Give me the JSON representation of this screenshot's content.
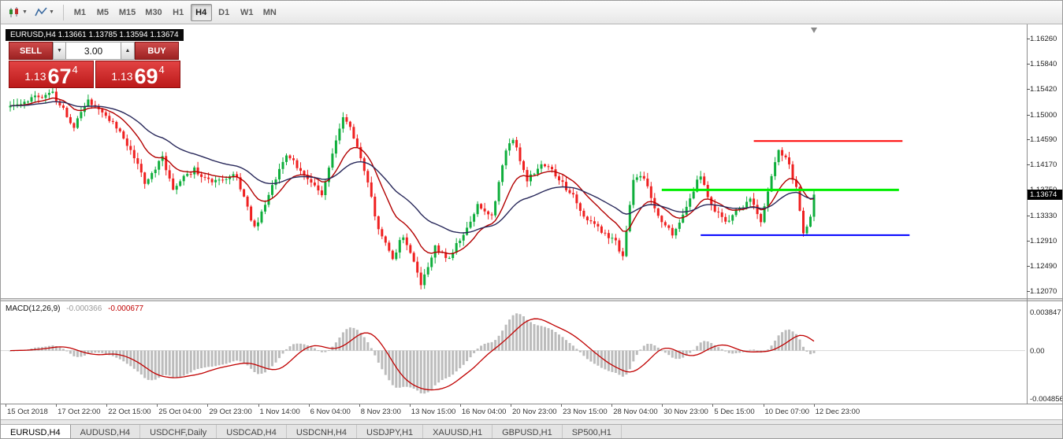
{
  "toolbar": {
    "timeframes": [
      "M1",
      "M5",
      "M15",
      "M30",
      "H1",
      "H4",
      "D1",
      "W1",
      "MN"
    ],
    "active_timeframe": "H4",
    "icons": [
      "chart-type-icon",
      "indicators-icon"
    ]
  },
  "symbol_header": {
    "symbol": "EURUSD,H4",
    "ohlc_text": "1.13661 1.13785 1.13594 1.13674"
  },
  "trade_panel": {
    "sell_label": "SELL",
    "buy_label": "BUY",
    "volume": "3.00",
    "sell_price": {
      "figure": "1.13",
      "pips": "67",
      "point": "4"
    },
    "buy_price": {
      "figure": "1.13",
      "pips": "69",
      "point": "4"
    }
  },
  "price_axis": {
    "current": "1.13674"
  },
  "macd_panel": {
    "label": "MACD(12,26,9)",
    "value_main": "-0.000366",
    "value_signal": "-0.000677"
  },
  "bottom_tabs": {
    "active": "EURUSD,H4",
    "items": [
      "EURUSD,H4",
      "AUDUSD,H4",
      "USDCHF,Daily",
      "USDCAD,H4",
      "USDCNH,H4",
      "USDJPY,H1",
      "XAUUSD,H1",
      "GBPUSD,H1",
      "SP500,H1"
    ]
  },
  "chart_data": {
    "type": "candlestick",
    "symbol": "EURUSD",
    "timeframe": "H4",
    "ohlc": {
      "open": 1.13661,
      "high": 1.13785,
      "low": 1.13594,
      "close": 1.13674
    },
    "current_price": 1.13674,
    "price_axis_ticks": [
      1.1626,
      1.1584,
      1.1542,
      1.15,
      1.1459,
      1.1417,
      1.1375,
      1.1333,
      1.1291,
      1.1249,
      1.1207
    ],
    "time_axis": [
      "15 Oct 2018",
      "17 Oct 22:00",
      "22 Oct 15:00",
      "25 Oct 04:00",
      "29 Oct 23:00",
      "1 Nov 14:00",
      "6 Nov 04:00",
      "8 Nov 23:00",
      "13 Nov 15:00",
      "16 Nov 04:00",
      "20 Nov 23:00",
      "23 Nov 15:00",
      "28 Nov 04:00",
      "30 Nov 23:00",
      "5 Dec 15:00",
      "10 Dec 07:00",
      "12 Dec 23:00"
    ],
    "candle_count": 228,
    "price_path": [
      [
        0,
        1.1512
      ],
      [
        6,
        1.1528
      ],
      [
        12,
        1.1537
      ],
      [
        18,
        1.1478
      ],
      [
        22,
        1.1526
      ],
      [
        28,
        1.1494
      ],
      [
        33,
        1.145
      ],
      [
        38,
        1.139
      ],
      [
        43,
        1.1428
      ],
      [
        46,
        1.138
      ],
      [
        52,
        1.1408
      ],
      [
        57,
        1.1385
      ],
      [
        64,
        1.1398
      ],
      [
        69,
        1.1312
      ],
      [
        73,
        1.1368
      ],
      [
        78,
        1.1432
      ],
      [
        84,
        1.1395
      ],
      [
        88,
        1.1368
      ],
      [
        94,
        1.1498
      ],
      [
        97,
        1.1465
      ],
      [
        100,
        1.1408
      ],
      [
        104,
        1.131
      ],
      [
        108,
        1.1262
      ],
      [
        111,
        1.13
      ],
      [
        116,
        1.1222
      ],
      [
        120,
        1.128
      ],
      [
        124,
        1.1262
      ],
      [
        129,
        1.1315
      ],
      [
        132,
        1.135
      ],
      [
        136,
        1.133
      ],
      [
        140,
        1.1445
      ],
      [
        142,
        1.1462
      ],
      [
        146,
        1.1392
      ],
      [
        150,
        1.142
      ],
      [
        154,
        1.1402
      ],
      [
        158,
        1.1372
      ],
      [
        162,
        1.1335
      ],
      [
        166,
        1.1312
      ],
      [
        170,
        1.1296
      ],
      [
        173,
        1.1268
      ],
      [
        176,
        1.139
      ],
      [
        179,
        1.1398
      ],
      [
        183,
        1.133
      ],
      [
        187,
        1.1302
      ],
      [
        191,
        1.1345
      ],
      [
        195,
        1.1402
      ],
      [
        198,
        1.135
      ],
      [
        202,
        1.1322
      ],
      [
        206,
        1.1345
      ],
      [
        209,
        1.1358
      ],
      [
        212,
        1.1322
      ],
      [
        215,
        1.14
      ],
      [
        217,
        1.1443
      ],
      [
        220,
        1.1415
      ],
      [
        222,
        1.1378
      ],
      [
        224,
        1.1306
      ],
      [
        226,
        1.1332
      ],
      [
        227,
        1.1367
      ]
    ],
    "hlines": [
      {
        "name": "resistance-line",
        "color": "#ff0000",
        "price": 1.1456,
        "from": 210,
        "to": 252,
        "width": 2
      },
      {
        "name": "pivot-line",
        "color": "#00ee00",
        "price": 1.1375,
        "from": 184,
        "to": 251,
        "width": 3
      },
      {
        "name": "support-line",
        "color": "#0000ff",
        "price": 1.13,
        "from": 195,
        "to": 254,
        "width": 2
      }
    ],
    "moving_averages": [
      {
        "name": "ma-fast",
        "period": 13,
        "color": "#b30000"
      },
      {
        "name": "ma-slow",
        "period": 34,
        "color": "#28285a"
      }
    ],
    "colors": {
      "up": "#0fae3c",
      "down": "#ef2020",
      "background": "#ffffff"
    },
    "macd": {
      "fast": 12,
      "slow": 26,
      "signal": 9,
      "histogram_color": "#bcbcbc",
      "signal_color": "#c00000",
      "axis_max": 0.003847,
      "axis_min": -0.004856,
      "axis_labels": [
        "0.003847",
        "0.00",
        "-0.004856"
      ],
      "last_macd": -0.000366,
      "last_signal": -0.000677
    }
  }
}
